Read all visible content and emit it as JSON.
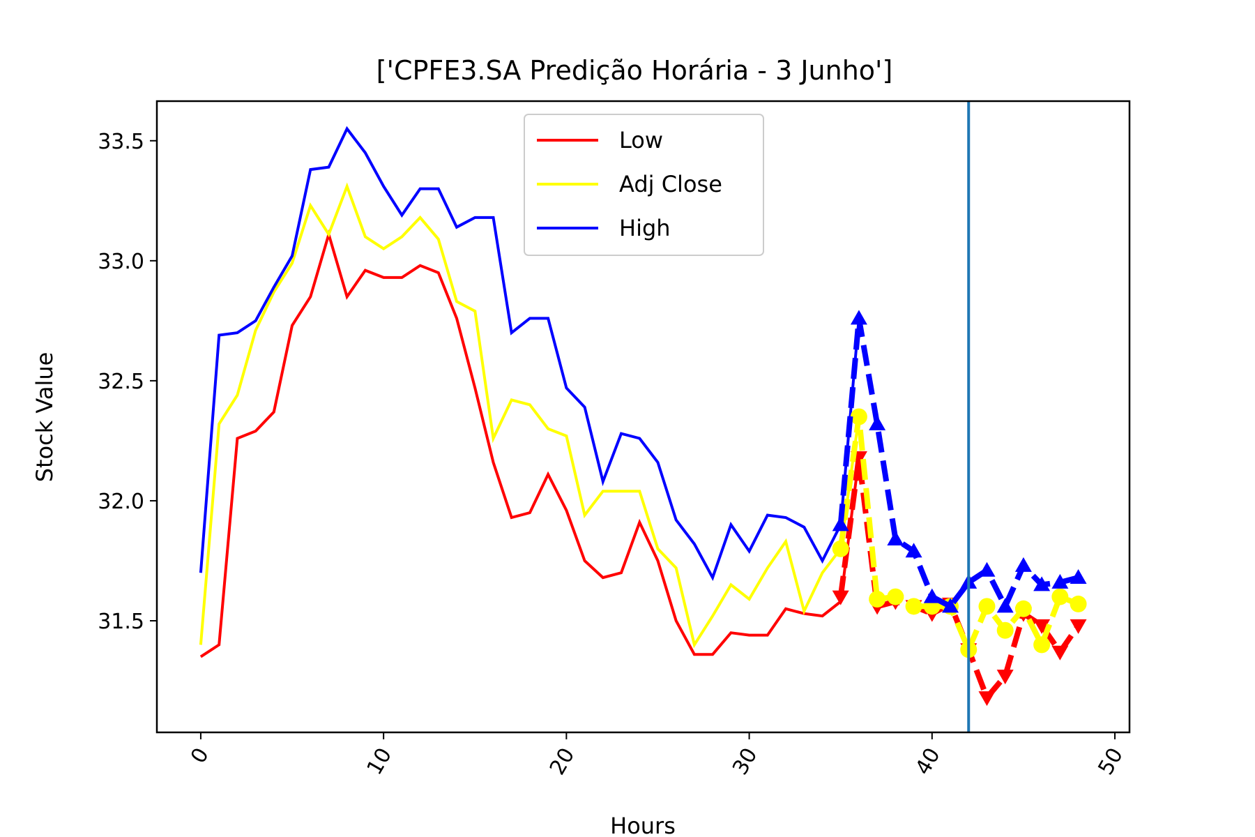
{
  "chart_data": {
    "type": "line",
    "title": "['CPFE3.SA Predição Horária - 3 Junho']",
    "xlabel": "Hours",
    "ylabel": "Stock Value",
    "xlim": [
      -2.4,
      50.8
    ],
    "ylim": [
      31.035,
      33.665
    ],
    "xticks": [
      0,
      10,
      20,
      30,
      40,
      50
    ],
    "xtick_labels": [
      "0",
      "10",
      "20",
      "30",
      "40",
      "50"
    ],
    "yticks": [
      31.5,
      32.0,
      32.5,
      33.0,
      33.5
    ],
    "ytick_labels": [
      "31.5",
      "32.0",
      "32.5",
      "33.0",
      "33.5"
    ],
    "grid": false,
    "legend_position": "upper-center",
    "vline_x": 42,
    "vline_color": "#1f77b4",
    "series": [
      {
        "name": "Low",
        "color": "#ff0000",
        "x": [
          0,
          1,
          2,
          3,
          4,
          5,
          6,
          7,
          8,
          9,
          10,
          11,
          12,
          13,
          14,
          15,
          16,
          17,
          18,
          19,
          20,
          21,
          22,
          23,
          24,
          25,
          26,
          27,
          28,
          29,
          30,
          31,
          32,
          33,
          34,
          35,
          36
        ],
        "values": [
          31.35,
          31.4,
          32.26,
          32.29,
          32.37,
          32.73,
          32.85,
          33.11,
          32.85,
          32.96,
          32.93,
          32.93,
          32.98,
          32.95,
          32.76,
          32.47,
          32.16,
          31.93,
          31.95,
          32.11,
          31.96,
          31.75,
          31.68,
          31.7,
          31.91,
          31.75,
          31.5,
          31.36,
          31.36,
          31.45,
          31.44,
          31.44,
          31.55,
          31.53,
          31.52,
          31.58,
          32.18
        ]
      },
      {
        "name": "Adj Close",
        "color": "#ffff00",
        "x": [
          0,
          1,
          2,
          3,
          4,
          5,
          6,
          7,
          8,
          9,
          10,
          11,
          12,
          13,
          14,
          15,
          16,
          17,
          18,
          19,
          20,
          21,
          22,
          23,
          24,
          25,
          26,
          27,
          28,
          29,
          30,
          31,
          32,
          33,
          34,
          35,
          36
        ],
        "values": [
          31.4,
          32.32,
          32.44,
          32.71,
          32.87,
          32.99,
          33.23,
          33.11,
          33.31,
          33.1,
          33.05,
          33.1,
          33.18,
          33.09,
          32.83,
          32.79,
          32.26,
          32.42,
          32.4,
          32.3,
          32.27,
          31.94,
          32.04,
          32.04,
          32.04,
          31.8,
          31.72,
          31.4,
          31.52,
          31.65,
          31.59,
          31.72,
          31.83,
          31.54,
          31.7,
          31.8,
          32.35
        ]
      },
      {
        "name": "High",
        "color": "#0000ff",
        "x": [
          0,
          1,
          2,
          3,
          4,
          5,
          6,
          7,
          8,
          9,
          10,
          11,
          12,
          13,
          14,
          15,
          16,
          17,
          18,
          19,
          20,
          21,
          22,
          23,
          24,
          25,
          26,
          27,
          28,
          29,
          30,
          31,
          32,
          33,
          34,
          35,
          36
        ],
        "values": [
          31.7,
          32.69,
          32.7,
          32.75,
          32.89,
          33.02,
          33.38,
          33.39,
          33.55,
          33.45,
          33.31,
          33.19,
          33.3,
          33.3,
          33.14,
          33.18,
          33.18,
          32.7,
          32.76,
          32.76,
          32.47,
          32.39,
          32.08,
          32.28,
          32.26,
          32.16,
          31.92,
          31.82,
          31.68,
          31.9,
          31.79,
          31.94,
          31.93,
          31.89,
          31.75,
          31.9,
          32.76
        ]
      }
    ],
    "prediction_series": [
      {
        "color": "#ff0000",
        "marker": "triangle-down",
        "x": [
          35,
          36,
          37,
          38,
          39,
          40,
          41,
          42,
          43,
          44,
          45,
          46,
          47,
          48
        ],
        "values": [
          31.6,
          32.18,
          31.56,
          31.58,
          31.56,
          31.53,
          31.57,
          31.38,
          31.18,
          31.27,
          31.53,
          31.48,
          31.37,
          31.48
        ]
      },
      {
        "color": "#ffff00",
        "marker": "circle",
        "x": [
          35,
          36,
          37,
          38,
          39,
          40,
          41,
          42,
          43,
          44,
          45,
          46,
          47,
          48
        ],
        "values": [
          31.8,
          32.35,
          31.59,
          31.6,
          31.56,
          31.56,
          31.56,
          31.38,
          31.56,
          31.46,
          31.55,
          31.4,
          31.6,
          31.57
        ]
      },
      {
        "color": "#0000ff",
        "marker": "triangle-up",
        "x": [
          35,
          36,
          37,
          38,
          39,
          40,
          41,
          42,
          43,
          44,
          45,
          46,
          47,
          48
        ],
        "values": [
          31.9,
          32.76,
          32.32,
          31.84,
          31.79,
          31.6,
          31.56,
          31.66,
          31.71,
          31.56,
          31.73,
          31.65,
          31.66,
          31.68
        ]
      }
    ]
  }
}
